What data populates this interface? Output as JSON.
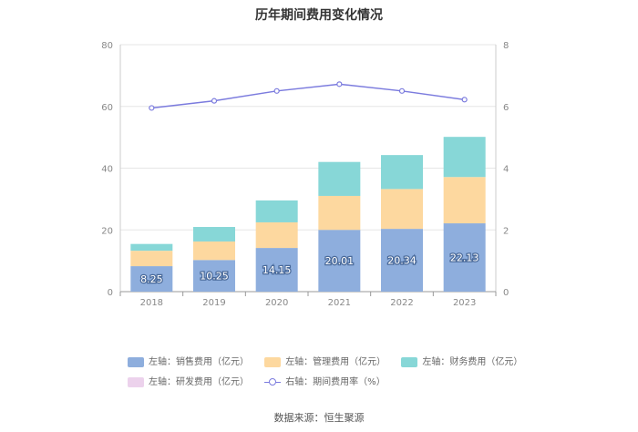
{
  "chart_data": {
    "type": "bar",
    "title": "历年期间费用变化情况",
    "categories": [
      "2018",
      "2019",
      "2020",
      "2021",
      "2022",
      "2023"
    ],
    "y_left": {
      "ylim": [
        0,
        80
      ],
      "ticks": [
        "0",
        "20",
        "40",
        "60",
        "80"
      ]
    },
    "y_right": {
      "ylim": [
        0,
        8
      ],
      "ticks": [
        "0",
        "2",
        "4",
        "6",
        "8"
      ]
    },
    "series": [
      {
        "name": "左轴：销售费用（亿元）",
        "kind": "bar",
        "axis": "left",
        "color": "#8eaedd",
        "values": [
          8.25,
          10.25,
          14.15,
          20.01,
          20.34,
          22.13
        ],
        "data_labels": [
          "8.25",
          "10.25",
          "14.15",
          "20.01",
          "20.34",
          "22.13"
        ]
      },
      {
        "name": "左轴：管理费用（亿元）",
        "kind": "bar",
        "axis": "left",
        "color": "#fdd89f",
        "values": [
          5.0,
          6.0,
          8.3,
          11.0,
          12.9,
          15.0
        ]
      },
      {
        "name": "左轴：财务费用（亿元）",
        "kind": "bar",
        "axis": "left",
        "color": "#87d7d7",
        "values": [
          2.2,
          4.7,
          7.1,
          11.0,
          11.0,
          13.0
        ]
      },
      {
        "name": "左轴：研发费用（亿元）",
        "kind": "bar",
        "axis": "left",
        "color": "#ecd2ec",
        "values": [
          0,
          0,
          0,
          0,
          0,
          0
        ]
      },
      {
        "name": "右轴：期间费用率（%）",
        "kind": "line",
        "axis": "right",
        "color": "#7b7bde",
        "values": [
          5.95,
          6.18,
          6.5,
          6.72,
          6.5,
          6.22
        ]
      }
    ],
    "legend_position": "bottom",
    "grid": true
  },
  "source": "数据来源：恒生聚源"
}
